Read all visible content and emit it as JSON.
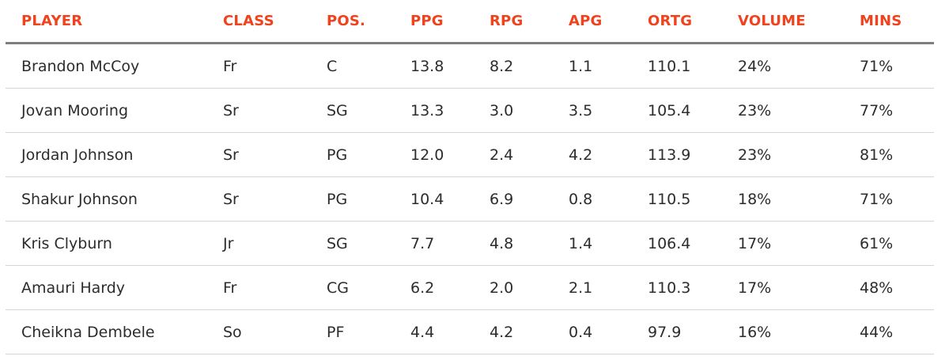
{
  "table": {
    "headers": [
      "PLAYER",
      "CLASS",
      "POS.",
      "PPG",
      "RPG",
      "APG",
      "ORTG",
      "VOLUME",
      "MINS"
    ],
    "rows": [
      [
        "Brandon McCoy",
        "Fr",
        "C",
        "13.8",
        "8.2",
        "1.1",
        "110.1",
        "24%",
        "71%"
      ],
      [
        "Jovan Mooring",
        "Sr",
        "SG",
        "13.3",
        "3.0",
        "3.5",
        "105.4",
        "23%",
        "77%"
      ],
      [
        "Jordan Johnson",
        "Sr",
        "PG",
        "12.0",
        "2.4",
        "4.2",
        "113.9",
        "23%",
        "81%"
      ],
      [
        "Shakur Johnson",
        "Sr",
        "PG",
        "10.4",
        "6.9",
        "0.8",
        "110.5",
        "18%",
        "71%"
      ],
      [
        "Kris Clyburn",
        "Jr",
        "SG",
        "7.7",
        "4.8",
        "1.4",
        "106.4",
        "17%",
        "61%"
      ],
      [
        "Amauri Hardy",
        "Fr",
        "CG",
        "6.2",
        "2.0",
        "2.1",
        "110.3",
        "17%",
        "48%"
      ],
      [
        "Cheikna Dembele",
        "So",
        "PF",
        "4.4",
        "4.2",
        "0.4",
        "97.9",
        "16%",
        "44%"
      ]
    ]
  },
  "colors": {
    "header_text": "#f0421c",
    "body_text": "#2c2c2c",
    "header_rule": "#7f7f7f",
    "row_rule": "#d4d4d4"
  }
}
